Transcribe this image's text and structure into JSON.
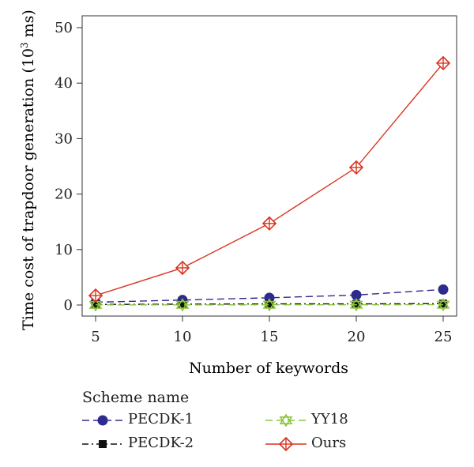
{
  "chart_data": {
    "type": "line",
    "xlabel": "Number of keywords",
    "ylabel_main": "Time cost of trapdoor generation (10",
    "ylabel_exp": "3",
    "ylabel_unit": " ms)",
    "x": [
      5,
      10,
      15,
      20,
      25
    ],
    "xlim": [
      5,
      25
    ],
    "ylim": [
      0,
      50
    ],
    "x_ticks": [
      "5",
      "10",
      "15",
      "20",
      "25"
    ],
    "y_ticks": [
      "0",
      "10",
      "20",
      "30",
      "40",
      "50"
    ],
    "grid": false,
    "legend_title": "Scheme name",
    "legend_position": "bottom",
    "series": [
      {
        "name": "PECDK-1",
        "values": [
          0.5,
          0.9,
          1.3,
          1.8,
          2.8
        ],
        "color": "#2e2b8f",
        "dash": "dashed",
        "marker": "circle"
      },
      {
        "name": "PECDK-2",
        "values": [
          0.1,
          0.15,
          0.2,
          0.2,
          0.25
        ],
        "color": "#111111",
        "dash": "dashdot",
        "marker": "square"
      },
      {
        "name": "YY18",
        "values": [
          0.02,
          0.03,
          0.04,
          0.05,
          0.06
        ],
        "color": "#8cc63e",
        "dash": "dashed",
        "marker": "star"
      },
      {
        "name": "Ours",
        "values": [
          1.7,
          6.7,
          14.7,
          24.8,
          43.6
        ],
        "color": "#d9331f",
        "dash": "solid",
        "marker": "diamond-cross"
      }
    ]
  }
}
